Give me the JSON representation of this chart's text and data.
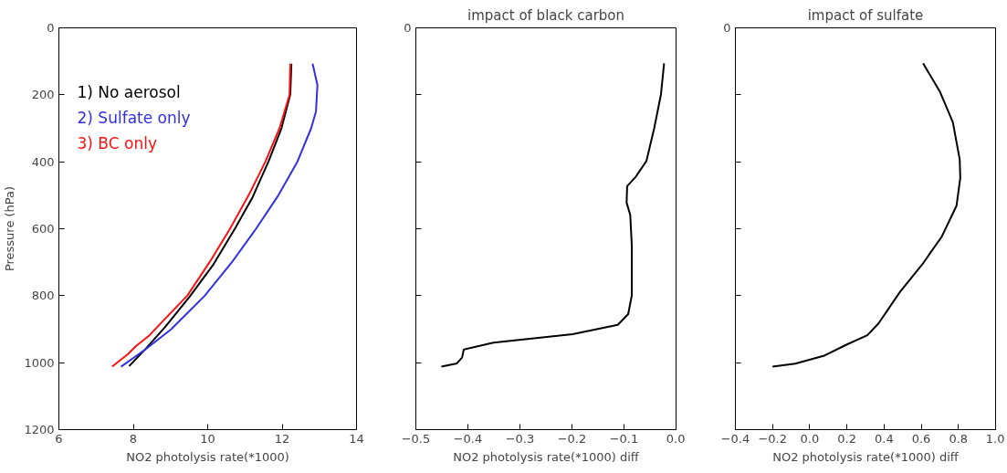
{
  "chart_data": [
    {
      "type": "line",
      "xlabel": "NO2 photolysis rate(*1000)",
      "ylabel": "Pressure (hPa)",
      "xlim": [
        6,
        14
      ],
      "ylim": [
        1200,
        0
      ],
      "xticks": [
        6,
        8,
        10,
        12,
        14
      ],
      "yticks": [
        0,
        200,
        400,
        600,
        800,
        1000,
        1200
      ],
      "legend": "top left",
      "grid": false,
      "series": [
        {
          "name": "1) No aerosol",
          "color": "#000000",
          "x": [
            12.25,
            12.22,
            11.98,
            11.64,
            11.21,
            10.72,
            10.14,
            9.52,
            8.85,
            8.33,
            7.89
          ],
          "values": [
            107,
            199,
            301,
            398,
            505,
            602,
            709,
            802,
            894,
            959,
            1010
          ]
        },
        {
          "name": "2) Sulfate only",
          "color": "#3030e0",
          "x": [
            12.82,
            12.95,
            12.91,
            12.78,
            12.41,
            11.9,
            11.3,
            10.65,
            9.92,
            9.02,
            8.33,
            7.67
          ],
          "values": [
            107,
            171,
            250,
            300,
            400,
            500,
            600,
            700,
            800,
            900,
            960,
            1012
          ]
        },
        {
          "name": "3) BC only",
          "color": "#ff1010",
          "x": [
            12.22,
            12.2,
            11.93,
            11.55,
            11.1,
            10.6,
            10.05,
            9.45,
            8.76,
            8.42,
            8.08,
            7.85,
            7.43
          ],
          "values": [
            107,
            200,
            300,
            400,
            500,
            600,
            700,
            800,
            880,
            920,
            950,
            975,
            1012
          ]
        }
      ]
    },
    {
      "type": "line",
      "title": "impact of black carbon",
      "xlabel": "NO2 photolysis rate(*1000) diff",
      "xlim": [
        -0.5,
        0.0
      ],
      "ylim": [
        1200,
        0
      ],
      "xticks": [
        {
          "value": -0.5,
          "label": "−0.5"
        },
        {
          "value": -0.4,
          "label": "−0.4"
        },
        {
          "value": -0.3,
          "label": "−0.3"
        },
        {
          "value": -0.2,
          "label": "−0.2"
        },
        {
          "value": -0.1,
          "label": "−0.1"
        },
        {
          "value": 0,
          "label": "0.0"
        }
      ],
      "yticks": [
        0,
        200,
        400,
        600,
        800,
        1000,
        1200
      ],
      "tick_labels": "x",
      "annotations": [
        "0"
      ],
      "grid": false,
      "series": [
        {
          "color": "#000000",
          "x": [
            -0.023,
            -0.029,
            -0.042,
            -0.057,
            -0.077,
            -0.094,
            -0.095,
            -0.088,
            -0.085,
            -0.085,
            -0.092,
            -0.112,
            -0.199,
            -0.351,
            -0.408,
            -0.411,
            -0.421,
            -0.451
          ],
          "values": [
            106,
            199,
            300,
            398,
            444,
            473,
            522,
            559,
            651,
            799,
            855,
            887,
            915,
            940,
            961,
            984,
            1002,
            1012
          ]
        }
      ]
    },
    {
      "type": "line",
      "title": "impact of sulfate",
      "xlabel": "NO2 photolysis rate(*1000) diff",
      "xlim": [
        -0.4,
        1.0
      ],
      "ylim": [
        1200,
        0
      ],
      "xticks": [
        {
          "value": -0.4,
          "label": "−0.4"
        },
        {
          "value": -0.2,
          "label": "−0.2"
        },
        {
          "value": 0,
          "label": "0.0"
        },
        0.2,
        0.4,
        0.6,
        0.8,
        {
          "value": 1,
          "label": "1.0"
        }
      ],
      "yticks": [
        0,
        200,
        400,
        600,
        800,
        1000,
        1200
      ],
      "tick_labels": "x",
      "annotations": [
        "0"
      ],
      "grid": false,
      "series": [
        {
          "color": "#000000",
          "x": [
            0.61,
            0.7,
            0.77,
            0.807,
            0.81,
            0.79,
            0.71,
            0.605,
            0.484,
            0.37,
            0.31,
            0.195,
            0.074,
            -0.078,
            -0.2
          ],
          "values": [
            106,
            190,
            282,
            393,
            448,
            531,
            624,
            707,
            790,
            883,
            918,
            947,
            980,
            1003,
            1012
          ]
        }
      ]
    }
  ]
}
